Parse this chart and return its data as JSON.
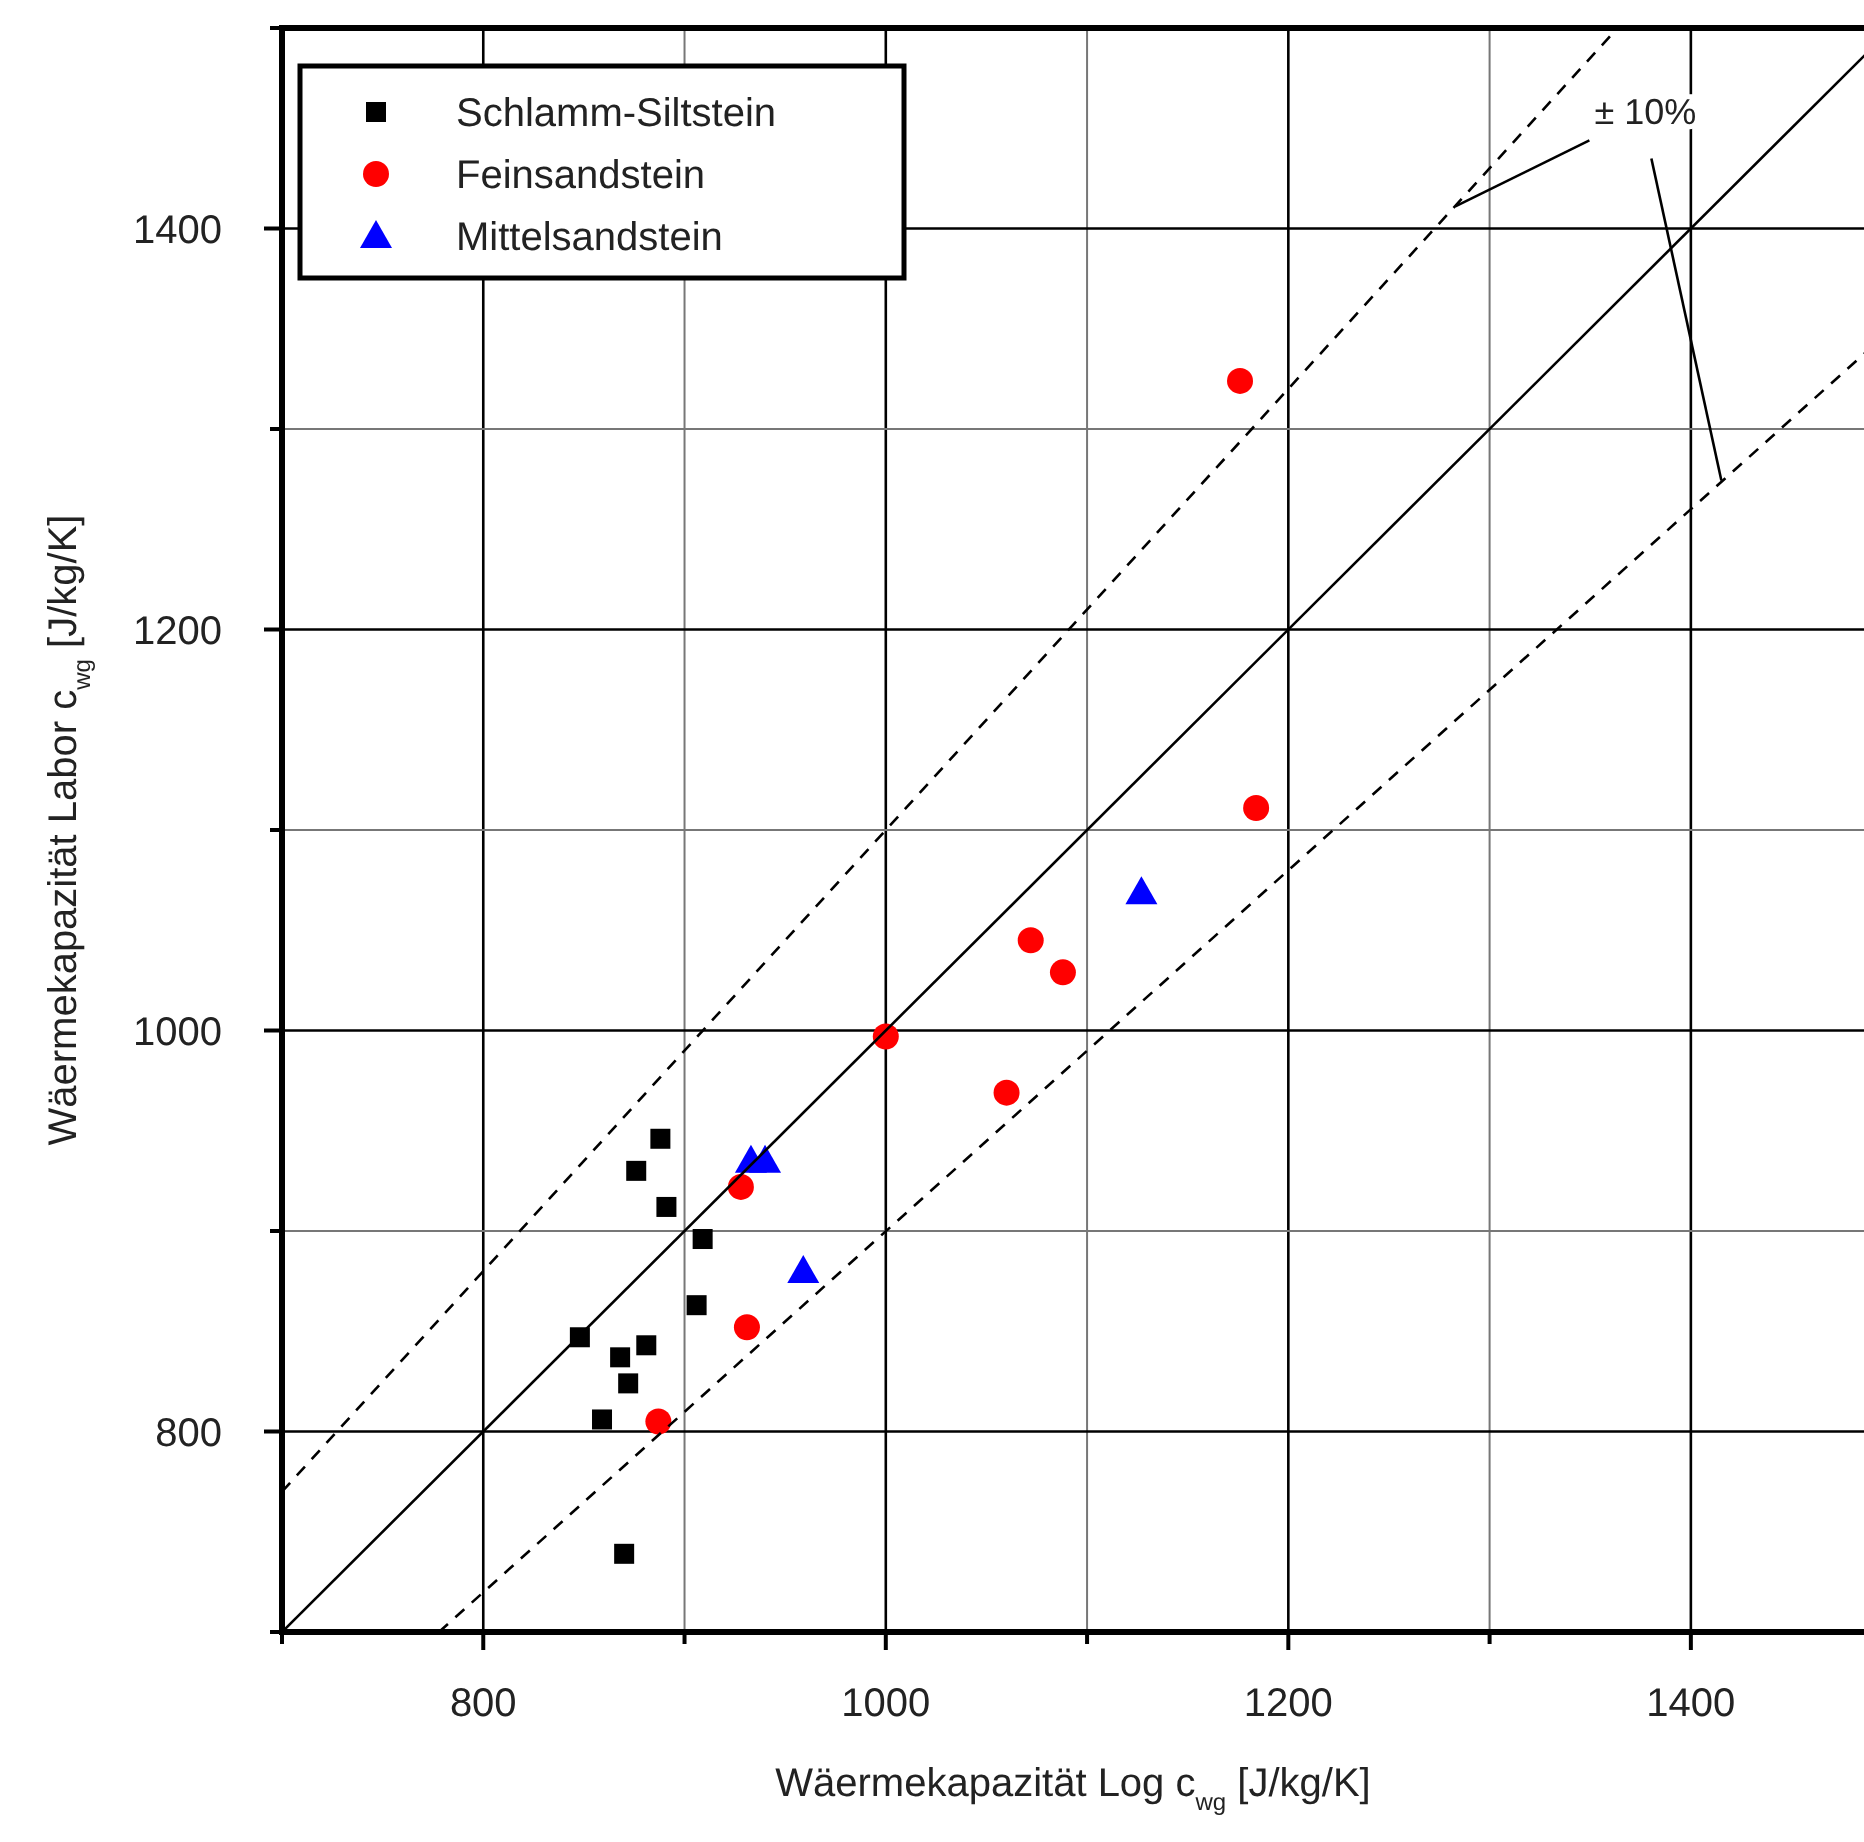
{
  "chart_data": {
    "type": "scatter",
    "xlabel": "Wäermekapazität Log c$_{wg}$ [J/kg/K]",
    "ylabel": "Wäermekapazität Labor c$_{wg}$ [J/kg/K]",
    "xlim": [
      700,
      1490
    ],
    "ylim": [
      700,
      1500
    ],
    "xticks": [
      {
        "value": 700,
        "label": null
      },
      800,
      {
        "value": 900,
        "label": null
      },
      1000,
      {
        "value": 1100,
        "label": null
      },
      1200,
      {
        "value": 1300,
        "label": null
      },
      1400
    ],
    "yticks": [
      {
        "value": 700,
        "label": null
      },
      800,
      {
        "value": 900,
        "label": null
      },
      1000,
      {
        "value": 1100,
        "label": null
      },
      1200,
      {
        "value": 1300,
        "label": null
      },
      1400,
      {
        "value": 1500,
        "label": null
      }
    ],
    "grid": true,
    "legend": "top left",
    "annotations": [
      {
        "text": "± 10%",
        "x": 1283,
        "y": 1411
      }
    ],
    "series": [
      {
        "name": "Schlamm-Siltstein",
        "color": "#000000",
        "marker": "square",
        "x": [
          848,
          859,
          868,
          872,
          881,
          876,
          888,
          891,
          909,
          906,
          870
        ],
        "values": [
          847,
          806,
          837,
          824,
          843,
          930,
          946,
          912,
          896,
          863,
          739
        ]
      },
      {
        "name": "Feinsandstein",
        "color": "#ff0000",
        "marker": "circle",
        "x": [
          928,
          931,
          887,
          1000,
          1072,
          1088,
          1060,
          1176,
          1184
        ],
        "values": [
          922,
          852,
          805,
          997,
          1045,
          1029,
          969,
          1324,
          1111
        ]
      },
      {
        "name": "Mittelsandstein",
        "color": "#0000ff",
        "marker": "triangle",
        "x": [
          933,
          940,
          959,
          1127
        ],
        "values": [
          935,
          935,
          880,
          1069
        ]
      },
      {
        "type": "line",
        "color": "#000000",
        "marker": "none",
        "line_style": "solid",
        "x": [
          700,
          1490
        ],
        "values": [
          700,
          1490
        ]
      },
      {
        "type": "line",
        "color": "#000000",
        "marker": "none",
        "line_style": "dashed",
        "x": [
          700,
          1360
        ],
        "values": [
          770,
          1496
        ]
      },
      {
        "type": "line",
        "color": "#000000",
        "marker": "none",
        "line_style": "dashed",
        "x": [
          778,
          1490
        ],
        "values": [
          700,
          1341
        ]
      }
    ]
  }
}
